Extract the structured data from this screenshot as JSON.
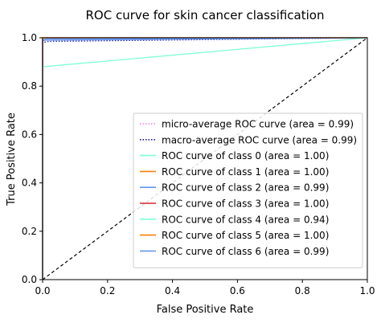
{
  "chart_data": {
    "type": "line",
    "title": "ROC curve for skin cancer classification",
    "xlabel": "False Positive Rate",
    "ylabel": "True Positive Rate",
    "xlim": [
      0.0,
      1.0
    ],
    "ylim": [
      0.0,
      1.0
    ],
    "xticks": [
      "0.0",
      "0.2",
      "0.4",
      "0.6",
      "0.8",
      "1.0"
    ],
    "yticks": [
      "0.0",
      "0.2",
      "0.4",
      "0.6",
      "0.8",
      "1.0"
    ],
    "grid": false,
    "legend_position": "lower-right",
    "series": [
      {
        "name": "micro-average ROC curve (area = 0.99)",
        "color": "#ee82ee",
        "dash": "dotted",
        "x": [
          0.0,
          0.0,
          0.01,
          1.0
        ],
        "y": [
          0.0,
          0.985,
          0.99,
          1.0
        ]
      },
      {
        "name": "macro-average ROC curve (area = 0.99)",
        "color": "#1a1aa0",
        "dash": "dotted",
        "x": [
          0.0,
          0.0,
          0.02,
          1.0
        ],
        "y": [
          0.0,
          0.98,
          0.985,
          1.0
        ]
      },
      {
        "name": "ROC curve of class 0 (area = 1.00)",
        "color": "#7fffd4",
        "dash": "solid",
        "x": [
          0.0,
          0.0,
          1.0
        ],
        "y": [
          0.0,
          1.0,
          1.0
        ]
      },
      {
        "name": "ROC curve of class 1 (area = 1.00)",
        "color": "#ff7f0e",
        "dash": "solid",
        "x": [
          0.0,
          0.0,
          1.0
        ],
        "y": [
          0.0,
          1.0,
          1.0
        ]
      },
      {
        "name": "ROC curve of class 2 (area = 0.99)",
        "color": "#6495ed",
        "dash": "solid",
        "x": [
          0.0,
          0.0,
          0.02,
          1.0
        ],
        "y": [
          0.0,
          0.99,
          0.99,
          1.0
        ]
      },
      {
        "name": "ROC curve of class 3 (area = 1.00)",
        "color": "#d62728",
        "dash": "solid",
        "x": [
          0.0,
          0.0,
          1.0
        ],
        "y": [
          0.0,
          1.0,
          1.0
        ]
      },
      {
        "name": "ROC curve of class 4 (area = 0.94)",
        "color": "#7fffd4",
        "dash": "solid",
        "x": [
          0.0,
          0.0,
          1.0
        ],
        "y": [
          0.0,
          0.88,
          1.0
        ]
      },
      {
        "name": "ROC curve of class 5 (area = 1.00)",
        "color": "#ff7f0e",
        "dash": "solid",
        "x": [
          0.0,
          0.0,
          1.0
        ],
        "y": [
          0.0,
          1.0,
          1.0
        ]
      },
      {
        "name": "ROC curve of class 6 (area = 0.99)",
        "color": "#6495ed",
        "dash": "solid",
        "x": [
          0.0,
          0.0,
          0.01,
          1.0
        ],
        "y": [
          0.0,
          0.99,
          0.995,
          1.0
        ]
      }
    ],
    "reference_line": {
      "color": "#000000",
      "dash": "dashed",
      "x": [
        0.0,
        1.0
      ],
      "y": [
        0.0,
        1.0
      ]
    }
  }
}
